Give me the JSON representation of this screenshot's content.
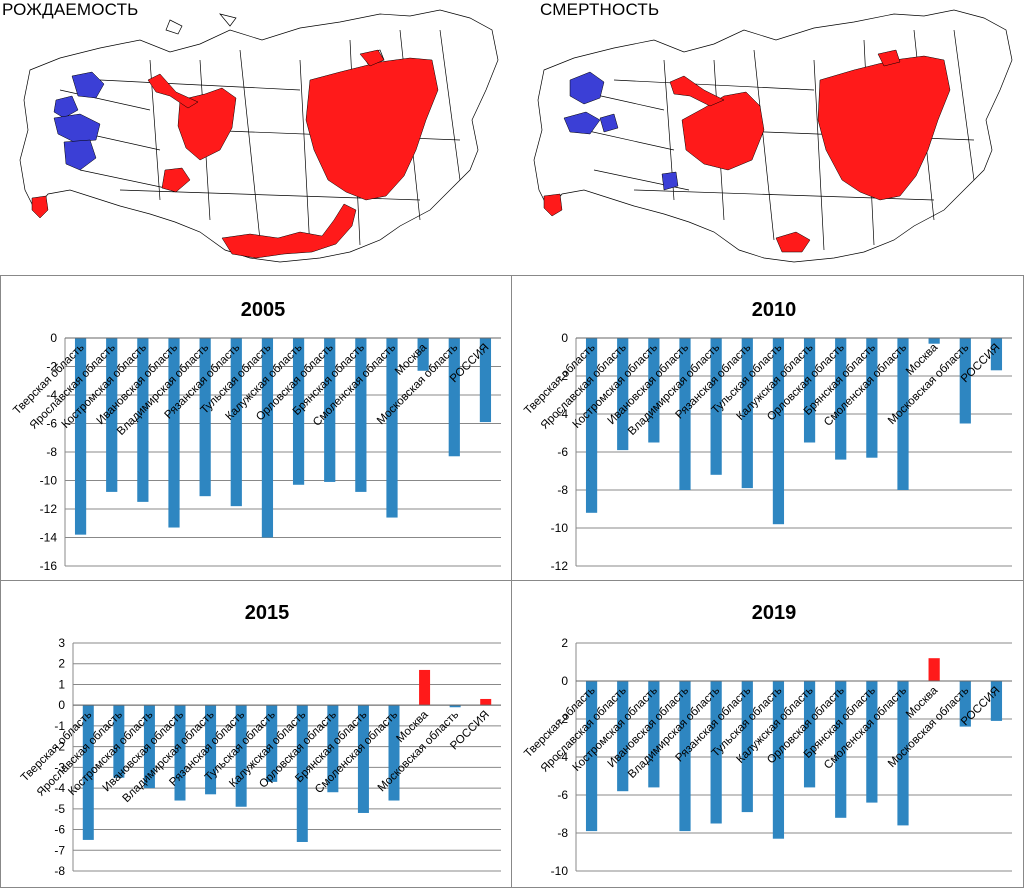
{
  "maps": [
    {
      "title": "РОЖДАЕМОСТЬ",
      "high_color": "#ff1a1a",
      "low_color": "#3b3fd6"
    },
    {
      "title": "СМЕРТНОСТЬ",
      "high_color": "#ff1a1a",
      "low_color": "#3b3fd6"
    }
  ],
  "chart_data": [
    {
      "type": "bar",
      "title": "2005",
      "categories": [
        "Тверская область",
        "Ярославская область",
        "Костромская область",
        "Ивановская область",
        "Владимирская область",
        "Рязанская область",
        "Тульская область",
        "Калужская область",
        "Орловская область",
        "Брянская область",
        "Смоленская область",
        "Москва",
        "Московская область",
        "РОССИЯ"
      ],
      "values": [
        -13.8,
        -10.8,
        -11.5,
        -13.3,
        -11.1,
        -11.8,
        -14.0,
        -10.3,
        -10.1,
        -10.8,
        -12.6,
        -2.3,
        -8.3,
        -5.9
      ],
      "ylim": [
        -16,
        0
      ],
      "ytick_step": 2,
      "grid": true,
      "positive_color": "#ff1a1a",
      "negative_color": "#2e86c1"
    },
    {
      "type": "bar",
      "title": "2010",
      "categories": [
        "Тверская область",
        "Ярославская область",
        "Костромская область",
        "Ивановская область",
        "Владимирская область",
        "Рязанская область",
        "Тульская область",
        "Калужская область",
        "Орловская область",
        "Брянская область",
        "Смоленская область",
        "Москва",
        "Московская область",
        "РОССИЯ"
      ],
      "values": [
        -9.2,
        -5.9,
        -5.5,
        -8.0,
        -7.2,
        -7.9,
        -9.8,
        -5.5,
        -6.4,
        -6.3,
        -8.0,
        -0.3,
        -4.5,
        -1.7
      ],
      "ylim": [
        -12,
        0
      ],
      "ytick_step": 2,
      "grid": true,
      "positive_color": "#ff1a1a",
      "negative_color": "#2e86c1"
    },
    {
      "type": "bar",
      "title": "2015",
      "categories": [
        "Тверская область",
        "Ярославская область",
        "Костромская область",
        "Ивановская область",
        "Владимирская область",
        "Рязанская область",
        "Тульская область",
        "Калужская область",
        "Орловская область",
        "Брянская область",
        "Смоленская область",
        "Москва",
        "Московская область",
        "РОССИЯ"
      ],
      "values": [
        -6.5,
        -3.5,
        -4.0,
        -4.6,
        -4.3,
        -4.9,
        -3.7,
        -6.6,
        -4.2,
        -5.2,
        -4.6,
        1.7,
        -0.1,
        0.3
      ],
      "ylim": [
        -8,
        3
      ],
      "ytick_step": 1,
      "grid": true,
      "positive_color": "#ff1a1a",
      "negative_color": "#2e86c1"
    },
    {
      "type": "bar",
      "title": "2019",
      "categories": [
        "Тверская область",
        "Ярославская область",
        "Костромская область",
        "Ивановская область",
        "Владимирская область",
        "Рязанская область",
        "Тульская область",
        "Калужская область",
        "Орловская область",
        "Брянская область",
        "Смоленская область",
        "Москва",
        "Московская область",
        "РОССИЯ"
      ],
      "values": [
        -7.9,
        -5.8,
        -5.6,
        -7.9,
        -7.5,
        -6.9,
        -8.3,
        -5.6,
        -7.2,
        -6.4,
        -7.6,
        1.2,
        -2.4,
        -2.1
      ],
      "ylim": [
        -10,
        2
      ],
      "ytick_step": 2,
      "grid": true,
      "positive_color": "#ff1a1a",
      "negative_color": "#2e86c1"
    }
  ]
}
